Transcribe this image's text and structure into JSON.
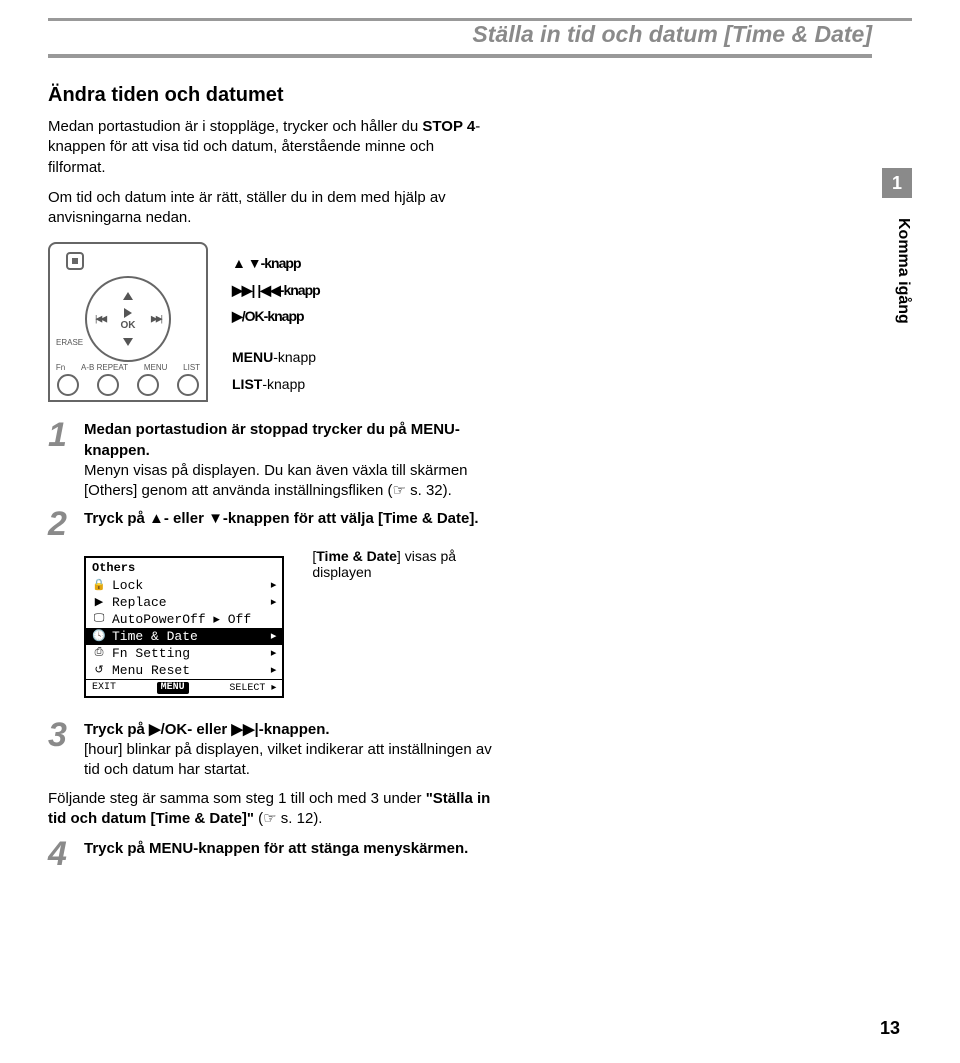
{
  "page": {
    "title": "Ställa in tid och datum [Time & Date]",
    "chapter_number": "1",
    "section_label": "Komma igång",
    "page_number": "13"
  },
  "intro": {
    "heading": "Ändra tiden och datumet",
    "p1a": "Medan portastudion är i stoppläge, trycker och håller du ",
    "p1b": "STOP 4",
    "p1c": "-knappen för att visa tid och datum, återstående minne och filformat.",
    "p2": "Om tid och datum inte är rätt, ställer du in dem med hjälp av anvisningarna nedan."
  },
  "device_labels": {
    "erase": "ERASE",
    "ok": "OK",
    "bottom": [
      "Fn",
      "A-B REPEAT",
      "MENU",
      "LIST"
    ]
  },
  "knapps": {
    "k1": "▲ ▼-knapp",
    "k2": "▶▶| |◀◀-knapp",
    "k3": "▶/OK-knapp",
    "k4a": "MENU",
    "k4b": "-knapp",
    "k5a": "LIST",
    "k5b": "-knapp"
  },
  "steps": {
    "s1": {
      "num": "1",
      "lead": "Medan portastudion är stoppad trycker du på MENU-knappen.",
      "body": "Menyn visas på displayen. Du kan även växla till skärmen [Others] genom att använda inställningsfliken (☞ s. 32)."
    },
    "s2": {
      "num": "2",
      "lead": "Tryck på ▲- eller ▼-knappen för att välja [Time & Date]."
    },
    "caption": "[Time & Date] visas på displayen",
    "s3": {
      "num": "3",
      "lead": "Tryck på ▶/OK- eller ▶▶|-knappen.",
      "body": "[hour] blinkar på displayen, vilket indikerar att inställningen av tid och datum har startat."
    },
    "mid": "Följande steg är samma som steg 1 till och med 3 under \"Ställa in tid och datum [Time & Date]\" (☞ s. 12).",
    "s4": {
      "num": "4",
      "lead": "Tryck på MENU-knappen för att stänga menyskärmen."
    }
  },
  "lcd": {
    "title": "Others",
    "rows": [
      {
        "icon": "🔒",
        "label": "Lock",
        "sel": false,
        "arrow": "▸"
      },
      {
        "icon": "▶",
        "label": "Replace",
        "sel": false,
        "arrow": "▸"
      },
      {
        "icon": "🖵",
        "label": "AutoPowerOff ▸ Off",
        "sel": false,
        "arrow": ""
      },
      {
        "icon": "🕓",
        "label": "Time & Date",
        "sel": true,
        "arrow": "▸"
      },
      {
        "icon": "⎙",
        "label": "Fn Setting",
        "sel": false,
        "arrow": "▸"
      },
      {
        "icon": "↺",
        "label": "Menu Reset",
        "sel": false,
        "arrow": "▸"
      }
    ],
    "foot_left": "EXIT",
    "foot_mid": "MENU",
    "foot_right": "SELECT ▸"
  }
}
